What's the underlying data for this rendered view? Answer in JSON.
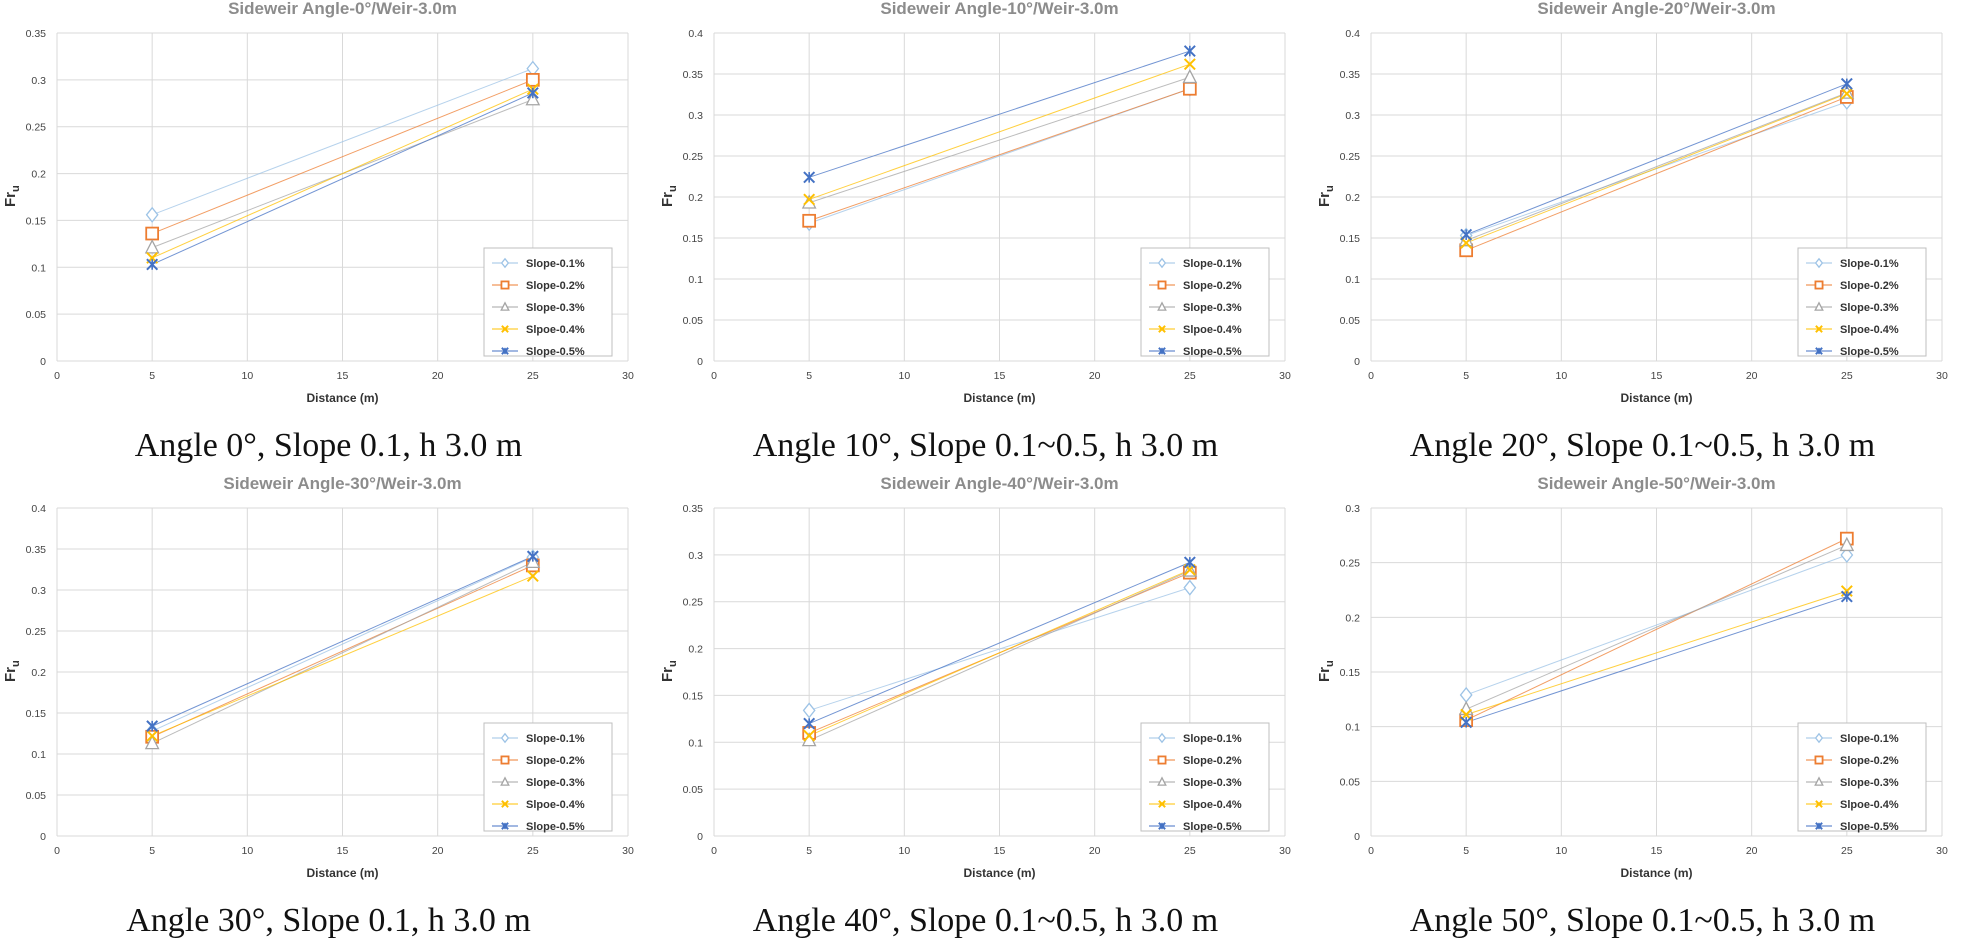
{
  "colors": {
    "s1": "#9DC3E6",
    "s2": "#ED7D31",
    "s3": "#A5A5A5",
    "s4": "#FFC000",
    "s5": "#4472C4"
  },
  "chart_data": [
    {
      "type": "scatter",
      "title": "Sideweir Angle-0°/Weir-3.0m",
      "caption": "Angle 0°, Slope 0.1, h 3.0 m",
      "xlabel": "Distance (m)",
      "ylabel": "Fr",
      "ylabel_sub": "u",
      "xlim": [
        0,
        30
      ],
      "xticks": [
        "0",
        "5",
        "10",
        "15",
        "20",
        "25",
        "30"
      ],
      "ylim": [
        0,
        0.35
      ],
      "yticks": [
        "0",
        "0.05",
        "0.1",
        "0.15",
        "0.2",
        "0.25",
        "0.3",
        "0.35"
      ],
      "grid": true,
      "legend": "bottom-right",
      "x": [
        5,
        25
      ],
      "series": [
        {
          "name": "Slope-0.1%",
          "marker": "diamond",
          "values": [
            0.156,
            0.312
          ]
        },
        {
          "name": "Slope-0.2%",
          "marker": "square",
          "values": [
            0.136,
            0.3
          ]
        },
        {
          "name": "Slope-0.3%",
          "marker": "triangle",
          "values": [
            0.121,
            0.279
          ]
        },
        {
          "name": "Slpoe-0.4%",
          "marker": "x",
          "values": [
            0.11,
            0.29
          ]
        },
        {
          "name": "Slope-0.5%",
          "marker": "star",
          "values": [
            0.103,
            0.286
          ]
        }
      ]
    },
    {
      "type": "scatter",
      "title": "Sideweir Angle-10°/Weir-3.0m",
      "caption": "Angle 10°, Slope 0.1~0.5, h 3.0 m",
      "xlabel": "Distance (m)",
      "ylabel": "Fr",
      "ylabel_sub": "u",
      "xlim": [
        0,
        30
      ],
      "xticks": [
        "0",
        "5",
        "10",
        "15",
        "20",
        "25",
        "30"
      ],
      "ylim": [
        0,
        0.4
      ],
      "yticks": [
        "0",
        "0.05",
        "0.1",
        "0.15",
        "0.2",
        "0.25",
        "0.3",
        "0.35",
        "0.4"
      ],
      "grid": true,
      "legend": "bottom-right",
      "x": [
        5,
        25
      ],
      "series": [
        {
          "name": "Slope-0.1%",
          "marker": "diamond",
          "values": [
            0.168,
            0.332
          ]
        },
        {
          "name": "Slope-0.2%",
          "marker": "square",
          "values": [
            0.171,
            0.332
          ]
        },
        {
          "name": "Slope-0.3%",
          "marker": "triangle",
          "values": [
            0.193,
            0.346
          ]
        },
        {
          "name": "Slpoe-0.4%",
          "marker": "x",
          "values": [
            0.197,
            0.362
          ]
        },
        {
          "name": "Slope-0.5%",
          "marker": "star",
          "values": [
            0.224,
            0.378
          ]
        }
      ]
    },
    {
      "type": "scatter",
      "title": "Sideweir Angle-20°/Weir-3.0m",
      "caption": "Angle 20°, Slope 0.1~0.5, h 3.0 m",
      "xlabel": "Distance (m)",
      "ylabel": "Fr",
      "ylabel_sub": "u",
      "xlim": [
        0,
        30
      ],
      "xticks": [
        "0",
        "5",
        "10",
        "15",
        "20",
        "25",
        "30"
      ],
      "ylim": [
        0,
        0.4
      ],
      "yticks": [
        "0",
        "0.05",
        "0.1",
        "0.15",
        "0.2",
        "0.25",
        "0.3",
        "0.35",
        "0.4"
      ],
      "grid": true,
      "legend": "bottom-right",
      "x": [
        5,
        25
      ],
      "series": [
        {
          "name": "Slope-0.1%",
          "marker": "diamond",
          "values": [
            0.153,
            0.316
          ]
        },
        {
          "name": "Slope-0.2%",
          "marker": "square",
          "values": [
            0.135,
            0.322
          ]
        },
        {
          "name": "Slope-0.3%",
          "marker": "triangle",
          "values": [
            0.147,
            0.327
          ]
        },
        {
          "name": "Slpoe-0.4%",
          "marker": "x",
          "values": [
            0.144,
            0.326
          ]
        },
        {
          "name": "Slope-0.5%",
          "marker": "star",
          "values": [
            0.154,
            0.338
          ]
        }
      ]
    },
    {
      "type": "scatter",
      "title": "Sideweir Angle-30°/Weir-3.0m",
      "caption": "Angle 30°, Slope 0.1, h 3.0 m",
      "xlabel": "Distance (m)",
      "ylabel": "Fr",
      "ylabel_sub": "u",
      "xlim": [
        0,
        30
      ],
      "xticks": [
        "0",
        "5",
        "10",
        "15",
        "20",
        "25",
        "30"
      ],
      "ylim": [
        0,
        0.4
      ],
      "yticks": [
        "0",
        "0.05",
        "0.1",
        "0.15",
        "0.2",
        "0.25",
        "0.3",
        "0.35",
        "0.4"
      ],
      "grid": true,
      "legend": "bottom-right",
      "x": [
        5,
        25
      ],
      "series": [
        {
          "name": "Slope-0.1%",
          "marker": "diamond",
          "values": [
            0.128,
            0.34
          ]
        },
        {
          "name": "Slope-0.2%",
          "marker": "square",
          "values": [
            0.121,
            0.33
          ]
        },
        {
          "name": "Slope-0.3%",
          "marker": "triangle",
          "values": [
            0.113,
            0.334
          ]
        },
        {
          "name": "Slpoe-0.4%",
          "marker": "x",
          "values": [
            0.122,
            0.317
          ]
        },
        {
          "name": "Slope-0.5%",
          "marker": "star",
          "values": [
            0.134,
            0.341
          ]
        }
      ]
    },
    {
      "type": "scatter",
      "title": "Sideweir Angle-40°/Weir-3.0m",
      "caption": "Angle 40°, Slope 0.1~0.5, h 3.0 m",
      "xlabel": "Distance (m)",
      "ylabel": "Fr",
      "ylabel_sub": "u",
      "xlim": [
        0,
        30
      ],
      "xticks": [
        "0",
        "5",
        "10",
        "15",
        "20",
        "25",
        "30"
      ],
      "ylim": [
        0,
        0.35
      ],
      "yticks": [
        "0",
        "0.05",
        "0.1",
        "0.15",
        "0.2",
        "0.25",
        "0.3",
        "0.35"
      ],
      "grid": true,
      "legend": "bottom-right",
      "x": [
        5,
        25
      ],
      "series": [
        {
          "name": "Slope-0.1%",
          "marker": "diamond",
          "values": [
            0.134,
            0.265
          ]
        },
        {
          "name": "Slope-0.2%",
          "marker": "square",
          "values": [
            0.11,
            0.281
          ]
        },
        {
          "name": "Slope-0.3%",
          "marker": "triangle",
          "values": [
            0.102,
            0.283
          ]
        },
        {
          "name": "Slpoe-0.4%",
          "marker": "x",
          "values": [
            0.107,
            0.284
          ]
        },
        {
          "name": "Slope-0.5%",
          "marker": "star",
          "values": [
            0.12,
            0.292
          ]
        }
      ]
    },
    {
      "type": "scatter",
      "title": "Sideweir Angle-50°/Weir-3.0m",
      "caption": "Angle 50°, Slope 0.1~0.5, h 3.0 m",
      "xlabel": "Distance (m)",
      "ylabel": "Fr",
      "ylabel_sub": "u",
      "xlim": [
        0,
        30
      ],
      "xticks": [
        "0",
        "5",
        "10",
        "15",
        "20",
        "25",
        "30"
      ],
      "ylim": [
        0,
        0.3
      ],
      "yticks": [
        "0",
        "0.05",
        "0.1",
        "0.15",
        "0.2",
        "0.25",
        "0.3"
      ],
      "grid": true,
      "legend": "bottom-right",
      "x": [
        5,
        25
      ],
      "series": [
        {
          "name": "Slope-0.1%",
          "marker": "diamond",
          "values": [
            0.129,
            0.257
          ]
        },
        {
          "name": "Slope-0.2%",
          "marker": "square",
          "values": [
            0.106,
            0.272
          ]
        },
        {
          "name": "Slope-0.3%",
          "marker": "triangle",
          "values": [
            0.116,
            0.266
          ]
        },
        {
          "name": "Slpoe-0.4%",
          "marker": "x",
          "values": [
            0.111,
            0.224
          ]
        },
        {
          "name": "Slope-0.5%",
          "marker": "star",
          "values": [
            0.104,
            0.219
          ]
        }
      ]
    }
  ]
}
